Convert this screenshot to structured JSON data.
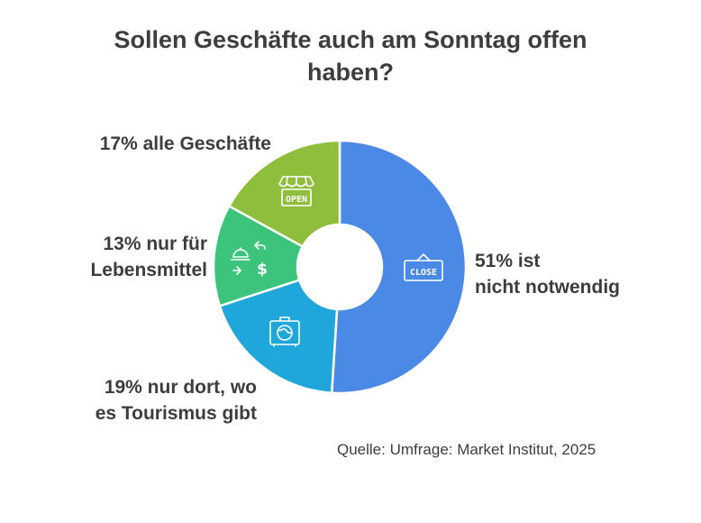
{
  "title_line1": "Sollen Geschäfte auch am Sonntag offen",
  "title_line2": "haben?",
  "source": "Quelle: Umfrage: Market Institut, 2025",
  "chart_data": {
    "type": "pie",
    "title": "Sollen Geschäfte auch am Sonntag offen haben?",
    "donut": true,
    "slices": [
      {
        "value": 51,
        "line1": "51% ist",
        "line2": "nicht notwendig",
        "color": "#4b89e6",
        "icon": "close-sign-icon"
      },
      {
        "value": 19,
        "line1": "19% nur dort, wo",
        "line2": "es Tourismus gibt",
        "color": "#1fa6db",
        "icon": "suitcase-globe-icon"
      },
      {
        "value": 13,
        "line1": "13% nur für",
        "line2": "Lebensmittel",
        "color": "#3cc47c",
        "icon": "food-cloche-exchange-icon"
      },
      {
        "value": 17,
        "line1": "17% alle Geschäfte",
        "line2": "",
        "color": "#8fbd3c",
        "icon": "open-shop-icon"
      }
    ]
  }
}
